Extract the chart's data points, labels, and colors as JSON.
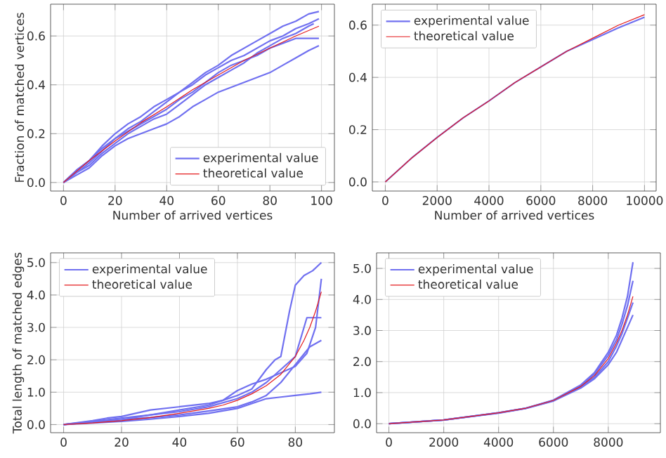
{
  "chart_data": [
    {
      "type": "line",
      "xlabel": "Number of arrived vertices",
      "ylabel": "Fraction of matched vertices",
      "xlim": [
        -5,
        105
      ],
      "ylim": [
        -0.035,
        0.73
      ],
      "xticks": [
        0,
        20,
        40,
        60,
        80,
        100
      ],
      "yticks": [
        {
          "value": 0,
          "label": "0.0"
        },
        {
          "value": 0.2,
          "label": "0.2"
        },
        {
          "value": 0.4,
          "label": "0.4"
        },
        {
          "value": 0.6,
          "label": "0.6"
        }
      ],
      "grid": true,
      "legend": "bottom right",
      "series": [
        {
          "name": "experimental value",
          "color": "#7070f0",
          "x": [
            0,
            5,
            10,
            15,
            20,
            25,
            30,
            35,
            40,
            45,
            50,
            55,
            60,
            65,
            70,
            75,
            80,
            85,
            90,
            95,
            99
          ],
          "values": [
            0,
            0.05,
            0.09,
            0.15,
            0.2,
            0.24,
            0.27,
            0.31,
            0.34,
            0.37,
            0.41,
            0.45,
            0.48,
            0.52,
            0.55,
            0.58,
            0.61,
            0.64,
            0.66,
            0.69,
            0.7
          ]
        },
        {
          "color": "#7070f0",
          "x": [
            0,
            5,
            10,
            15,
            20,
            25,
            30,
            35,
            40,
            45,
            50,
            55,
            60,
            65,
            70,
            75,
            80,
            85,
            90,
            95,
            99
          ],
          "values": [
            0,
            0.04,
            0.08,
            0.13,
            0.18,
            0.22,
            0.25,
            0.29,
            0.33,
            0.37,
            0.4,
            0.44,
            0.47,
            0.5,
            0.52,
            0.55,
            0.58,
            0.6,
            0.63,
            0.65,
            0.67
          ]
        },
        {
          "color": "#7070f0",
          "x": [
            0,
            5,
            10,
            15,
            20,
            25,
            30,
            35,
            40,
            45,
            50,
            55,
            60,
            65,
            70,
            75,
            80,
            85,
            90,
            95,
            99
          ],
          "values": [
            0,
            0.05,
            0.09,
            0.14,
            0.18,
            0.21,
            0.24,
            0.27,
            0.3,
            0.34,
            0.37,
            0.41,
            0.45,
            0.48,
            0.5,
            0.52,
            0.55,
            0.57,
            0.59,
            0.59,
            0.59
          ]
        },
        {
          "color": "#7070f0",
          "x": [
            0,
            5,
            10,
            15,
            20,
            25,
            30,
            35,
            40,
            45,
            50,
            55,
            60,
            65,
            70,
            75,
            80,
            85,
            90,
            95,
            97
          ],
          "values": [
            0,
            0.04,
            0.07,
            0.12,
            0.16,
            0.2,
            0.23,
            0.26,
            0.28,
            0.32,
            0.36,
            0.4,
            0.43,
            0.46,
            0.49,
            0.53,
            0.56,
            0.59,
            0.61,
            0.64,
            0.65
          ]
        },
        {
          "color": "#7070f0",
          "x": [
            0,
            5,
            10,
            15,
            20,
            25,
            30,
            35,
            40,
            45,
            50,
            55,
            60,
            65,
            70,
            75,
            80,
            85,
            90,
            95,
            99
          ],
          "values": [
            0,
            0.03,
            0.06,
            0.11,
            0.15,
            0.18,
            0.2,
            0.22,
            0.24,
            0.27,
            0.31,
            0.34,
            0.37,
            0.39,
            0.41,
            0.43,
            0.45,
            0.48,
            0.51,
            0.54,
            0.56
          ]
        },
        {
          "name": "theoretical value",
          "color": "#e41a1c",
          "x": [
            0,
            10,
            20,
            30,
            40,
            50,
            60,
            70,
            80,
            90,
            99
          ],
          "values": [
            0,
            0.09,
            0.17,
            0.245,
            0.31,
            0.38,
            0.44,
            0.5,
            0.55,
            0.6,
            0.64
          ]
        }
      ]
    },
    {
      "type": "line",
      "xlabel": "Number of arrived vertices",
      "xlim": [
        -500,
        10450
      ],
      "ylim": [
        -0.035,
        0.68
      ],
      "xticks": [
        0,
        2000,
        4000,
        6000,
        8000,
        10000
      ],
      "yticks": [
        {
          "value": 0,
          "label": "0.0"
        },
        {
          "value": 0.2,
          "label": "0.2"
        },
        {
          "value": 0.4,
          "label": "0.4"
        },
        {
          "value": 0.6,
          "label": "0.6"
        }
      ],
      "grid": true,
      "legend": "top left",
      "series": [
        {
          "name": "experimental value",
          "color": "#7070f0",
          "x": [
            0,
            1000,
            2000,
            3000,
            4000,
            5000,
            6000,
            7000,
            8000,
            9000,
            10000
          ],
          "values": [
            0,
            0.09,
            0.17,
            0.245,
            0.31,
            0.38,
            0.44,
            0.5,
            0.545,
            0.59,
            0.63
          ]
        },
        {
          "name": "theoretical value",
          "color": "#e41a1c",
          "x": [
            0,
            1000,
            2000,
            3000,
            4000,
            5000,
            6000,
            7000,
            8000,
            9000,
            10000
          ],
          "values": [
            0,
            0.09,
            0.17,
            0.245,
            0.31,
            0.38,
            0.44,
            0.5,
            0.55,
            0.6,
            0.64
          ]
        }
      ]
    },
    {
      "type": "line",
      "ylabel": "Total length of matched edges",
      "xlim": [
        -4.5,
        93.5
      ],
      "ylim": [
        -0.25,
        5.3
      ],
      "xticks": [
        0,
        20,
        40,
        60,
        80
      ],
      "yticks": [
        {
          "value": 0,
          "label": "0.0"
        },
        {
          "value": 1,
          "label": "1.0"
        },
        {
          "value": 2,
          "label": "2.0"
        },
        {
          "value": 3,
          "label": "3.0"
        },
        {
          "value": 4,
          "label": "4.0"
        },
        {
          "value": 5,
          "label": "5.0"
        }
      ],
      "grid": true,
      "legend": "top left",
      "series": [
        {
          "name": "experimental value",
          "color": "#7070f0",
          "x": [
            0,
            10,
            20,
            30,
            40,
            50,
            55,
            60,
            65,
            70,
            73,
            75,
            78,
            80,
            83,
            86,
            89
          ],
          "values": [
            0,
            0.08,
            0.15,
            0.3,
            0.45,
            0.6,
            0.75,
            0.9,
            1.1,
            1.7,
            2.0,
            2.1,
            3.5,
            4.3,
            4.6,
            4.75,
            5.0
          ]
        },
        {
          "color": "#7070f0",
          "x": [
            0,
            10,
            15,
            20,
            30,
            40,
            50,
            55,
            60,
            65,
            70,
            75,
            80,
            84,
            87,
            89
          ],
          "values": [
            0,
            0.12,
            0.2,
            0.25,
            0.45,
            0.55,
            0.65,
            0.75,
            1.05,
            1.25,
            1.4,
            1.6,
            1.8,
            2.2,
            3.0,
            4.5
          ]
        },
        {
          "color": "#7070f0",
          "x": [
            0,
            20,
            30,
            40,
            50,
            60,
            65,
            70,
            75,
            80,
            84,
            89
          ],
          "values": [
            0,
            0.2,
            0.3,
            0.4,
            0.55,
            0.8,
            1.0,
            1.3,
            1.7,
            2.1,
            3.3,
            3.3
          ]
        },
        {
          "color": "#7070f0",
          "x": [
            0,
            20,
            30,
            40,
            50,
            60,
            65,
            70,
            75,
            80,
            85,
            89
          ],
          "values": [
            0,
            0.15,
            0.22,
            0.3,
            0.42,
            0.55,
            0.7,
            0.9,
            1.3,
            1.85,
            2.4,
            2.6
          ]
        },
        {
          "color": "#7070f0",
          "x": [
            0,
            20,
            30,
            40,
            50,
            60,
            65,
            70,
            75,
            80,
            85,
            89
          ],
          "values": [
            0,
            0.1,
            0.17,
            0.25,
            0.35,
            0.5,
            0.65,
            0.8,
            0.85,
            0.9,
            0.95,
            1.0
          ]
        },
        {
          "name": "theoretical value",
          "color": "#e41a1c",
          "x": [
            0,
            10,
            20,
            30,
            40,
            50,
            55,
            60,
            65,
            70,
            75,
            80,
            83,
            85,
            87,
            89
          ],
          "values": [
            0,
            0.05,
            0.12,
            0.22,
            0.35,
            0.5,
            0.6,
            0.75,
            0.95,
            1.2,
            1.55,
            2.1,
            2.6,
            3.0,
            3.5,
            4.1
          ]
        }
      ]
    },
    {
      "type": "line",
      "xlim": [
        -450,
        9900
      ],
      "ylim": [
        -0.29,
        5.5
      ],
      "xticks": [
        0,
        2000,
        4000,
        6000,
        8000
      ],
      "yticks": [
        {
          "value": 0,
          "label": "0.0"
        },
        {
          "value": 1,
          "label": "1.0"
        },
        {
          "value": 2,
          "label": "2.0"
        },
        {
          "value": 3,
          "label": "3.0"
        },
        {
          "value": 4,
          "label": "4.0"
        },
        {
          "value": 5,
          "label": "5.0"
        }
      ],
      "grid": true,
      "legend": "top left",
      "series": [
        {
          "name": "experimental value",
          "color": "#7070f0",
          "x": [
            0,
            2000,
            4000,
            5000,
            6000,
            7000,
            7500,
            8000,
            8300,
            8500,
            8700,
            8900
          ],
          "values": [
            0,
            0.12,
            0.35,
            0.5,
            0.76,
            1.25,
            1.65,
            2.3,
            2.85,
            3.4,
            4.1,
            5.2
          ]
        },
        {
          "color": "#7070f0",
          "x": [
            0,
            2000,
            4000,
            5000,
            6000,
            7000,
            7500,
            8000,
            8300,
            8500,
            8700,
            8900
          ],
          "values": [
            0,
            0.12,
            0.35,
            0.5,
            0.75,
            1.22,
            1.6,
            2.2,
            2.7,
            3.2,
            3.8,
            4.6
          ]
        },
        {
          "color": "#7070f0",
          "x": [
            0,
            2000,
            4000,
            5000,
            6000,
            7000,
            7500,
            8000,
            8300,
            8500,
            8700,
            8900
          ],
          "values": [
            0,
            0.12,
            0.34,
            0.49,
            0.73,
            1.15,
            1.45,
            1.9,
            2.3,
            2.7,
            3.1,
            3.5
          ]
        },
        {
          "color": "#7070f0",
          "x": [
            0,
            2000,
            4000,
            5000,
            6000,
            7000,
            7500,
            8000,
            8300,
            8500,
            8700,
            8900
          ],
          "values": [
            0,
            0.12,
            0.35,
            0.5,
            0.74,
            1.18,
            1.5,
            2.0,
            2.5,
            2.9,
            3.4,
            3.9
          ]
        },
        {
          "name": "theoretical value",
          "color": "#e41a1c",
          "x": [
            0,
            2000,
            4000,
            5000,
            6000,
            7000,
            7500,
            8000,
            8300,
            8500,
            8700,
            8900
          ],
          "values": [
            0,
            0.12,
            0.35,
            0.5,
            0.75,
            1.2,
            1.55,
            2.1,
            2.6,
            3.0,
            3.5,
            4.1
          ]
        }
      ]
    }
  ]
}
